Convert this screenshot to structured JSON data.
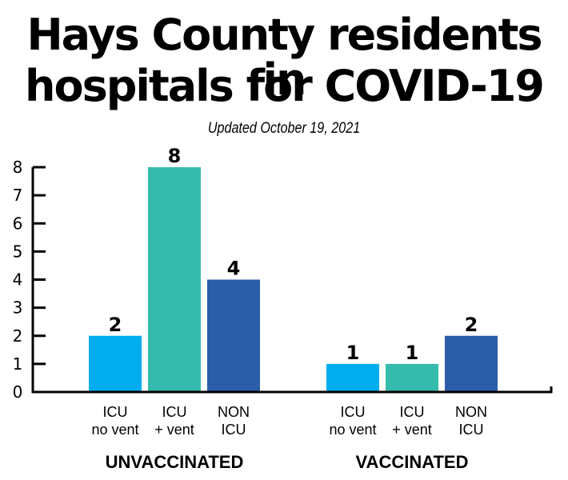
{
  "chart_data": {
    "type": "bar",
    "title": "Hays County residents in hospitals for COVID-19",
    "title_lines": [
      "Hays County residents in",
      "hospitals for COVID-19"
    ],
    "subtitle": "Updated October 19, 2021",
    "xlabel": "",
    "ylabel": "",
    "ylim": [
      0,
      8
    ],
    "yticks": [
      0,
      1,
      2,
      3,
      4,
      5,
      6,
      7,
      8
    ],
    "grid": false,
    "legend": "none",
    "categories": [
      {
        "line1": "ICU",
        "line2": "no vent"
      },
      {
        "line1": "ICU",
        "line2": "+ vent"
      },
      {
        "line1": "NON",
        "line2": "ICU"
      }
    ],
    "colors": [
      "#00AEEF",
      "#35BBAD",
      "#2C5DA9"
    ],
    "groups": [
      {
        "name": "UNVACCINATED",
        "values": [
          2,
          8,
          4
        ]
      },
      {
        "name": "VACCINATED",
        "values": [
          1,
          1,
          2
        ]
      }
    ]
  }
}
